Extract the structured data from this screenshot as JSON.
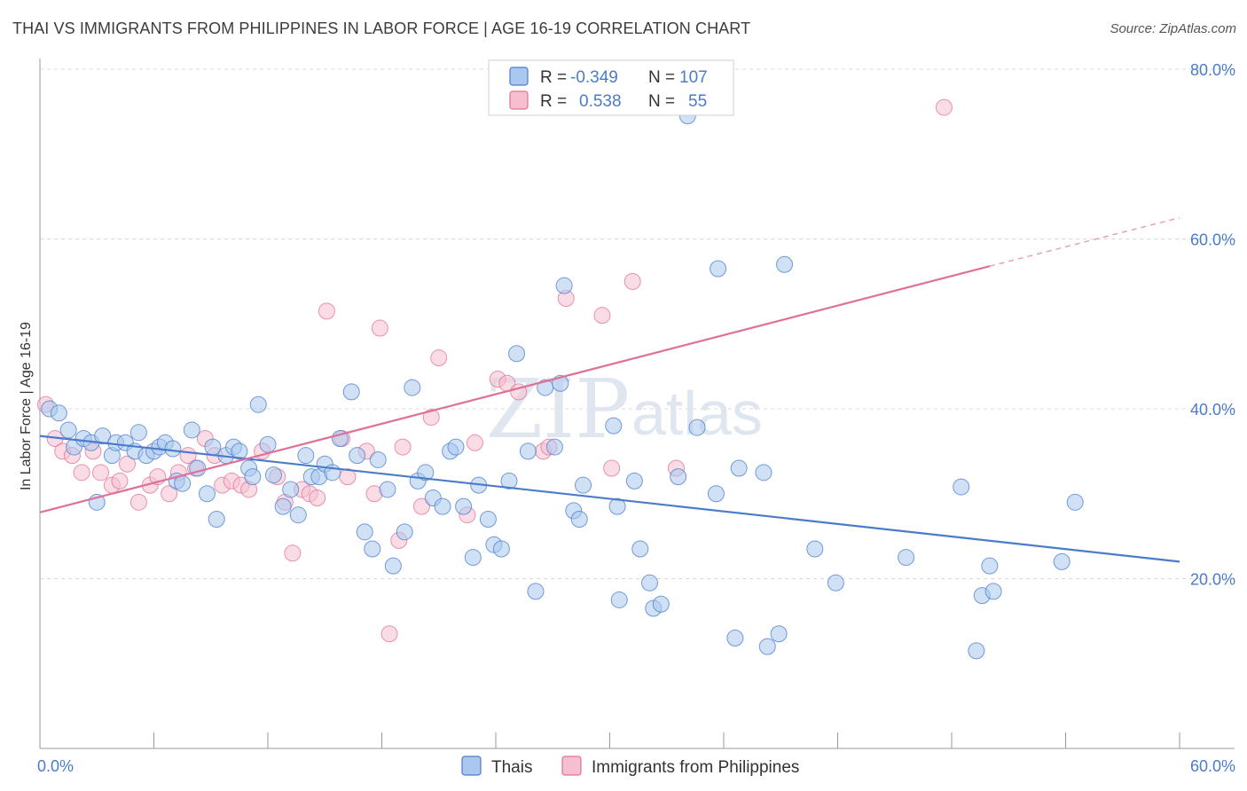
{
  "title": "THAI VS IMMIGRANTS FROM PHILIPPINES IN LABOR FORCE | AGE 16-19 CORRELATION CHART",
  "source": "Source: ZipAtlas.com",
  "watermark": {
    "zip": "ZIP",
    "atlas": "atlas"
  },
  "colors": {
    "blue": "#4a7cc9",
    "blue_fill": "#aac8ef",
    "pink": "#e07099",
    "pink_fill": "#f5bfd0",
    "grid": "#d8d8d8"
  },
  "legend_top": {
    "rows": [
      {
        "r_label": "R =",
        "r_value": "-0.349",
        "n_label": "N =",
        "n_value": "107"
      },
      {
        "r_label": "R =",
        "r_value": "0.538",
        "n_label": "N =",
        "n_value": "55"
      }
    ]
  },
  "chart_data": {
    "type": "scatter",
    "title": "THAI VS IMMIGRANTS FROM PHILIPPINES IN LABOR FORCE | AGE 16-19 CORRELATION CHART",
    "xlabel": "",
    "ylabel": "In Labor Force | Age 16-19",
    "xlim": [
      0,
      60
    ],
    "ylim": [
      0,
      80
    ],
    "x_tick_labels": [
      "0.0%",
      "60.0%"
    ],
    "y_ticks": [
      20,
      40,
      60,
      80
    ],
    "y_tick_labels": [
      "20.0%",
      "40.0%",
      "60.0%",
      "80.0%"
    ],
    "grid": true,
    "legend_position": "bottom",
    "series": [
      {
        "name": "Thais",
        "trend": {
          "x": [
            0,
            60
          ],
          "y": [
            36.8,
            22.0
          ],
          "dash_from": null
        },
        "points": [
          [
            0.5,
            40
          ],
          [
            1,
            39.5
          ],
          [
            1.5,
            37.5
          ],
          [
            1.8,
            35.5
          ],
          [
            2.3,
            36.5
          ],
          [
            2.7,
            36
          ],
          [
            3,
            29
          ],
          [
            3.3,
            36.8
          ],
          [
            3.8,
            34.5
          ],
          [
            4,
            36
          ],
          [
            4.5,
            36
          ],
          [
            5,
            35
          ],
          [
            5.2,
            37.2
          ],
          [
            5.6,
            34.5
          ],
          [
            6,
            35
          ],
          [
            6.3,
            35.5
          ],
          [
            6.6,
            36
          ],
          [
            7,
            35.3
          ],
          [
            7.2,
            31.5
          ],
          [
            7.5,
            31.2
          ],
          [
            8,
            37.5
          ],
          [
            8.3,
            33
          ],
          [
            8.8,
            30
          ],
          [
            9.1,
            35.5
          ],
          [
            9.3,
            27
          ],
          [
            9.8,
            34.5
          ],
          [
            10.2,
            35.5
          ],
          [
            10.5,
            35
          ],
          [
            11,
            33
          ],
          [
            11.2,
            32
          ],
          [
            11.5,
            40.5
          ],
          [
            12,
            35.8
          ],
          [
            12.3,
            32.2
          ],
          [
            12.8,
            28.5
          ],
          [
            13.2,
            30.5
          ],
          [
            13.6,
            27.5
          ],
          [
            14,
            34.5
          ],
          [
            14.3,
            32
          ],
          [
            14.7,
            32
          ],
          [
            15,
            33.5
          ],
          [
            15.4,
            32.5
          ],
          [
            15.8,
            36.5
          ],
          [
            16.4,
            42
          ],
          [
            16.7,
            34.5
          ],
          [
            17.1,
            25.5
          ],
          [
            17.5,
            23.5
          ],
          [
            17.8,
            34
          ],
          [
            18.3,
            30.5
          ],
          [
            18.6,
            21.5
          ],
          [
            19.2,
            25.5
          ],
          [
            19.6,
            42.5
          ],
          [
            19.9,
            31.5
          ],
          [
            20.3,
            32.5
          ],
          [
            20.7,
            29.5
          ],
          [
            21.2,
            28.5
          ],
          [
            21.6,
            35
          ],
          [
            21.9,
            35.5
          ],
          [
            22.3,
            28.5
          ],
          [
            22.8,
            22.5
          ],
          [
            23.1,
            31
          ],
          [
            23.6,
            27
          ],
          [
            23.9,
            24
          ],
          [
            24.3,
            23.5
          ],
          [
            24.7,
            31.5
          ],
          [
            25.1,
            46.5
          ],
          [
            25.7,
            35
          ],
          [
            26.1,
            18.5
          ],
          [
            26.6,
            42.5
          ],
          [
            27.1,
            35.5
          ],
          [
            27.4,
            43
          ],
          [
            27.6,
            54.5
          ],
          [
            28.1,
            28
          ],
          [
            28.4,
            27
          ],
          [
            28.6,
            31
          ],
          [
            30.2,
            38
          ],
          [
            30.4,
            28.5
          ],
          [
            30.5,
            17.5
          ],
          [
            31.3,
            31.5
          ],
          [
            31.6,
            23.5
          ],
          [
            32.1,
            19.5
          ],
          [
            32.3,
            16.5
          ],
          [
            32.7,
            17
          ],
          [
            33.6,
            32
          ],
          [
            34.1,
            74.5
          ],
          [
            34.6,
            37.8
          ],
          [
            35.6,
            30
          ],
          [
            35.7,
            56.5
          ],
          [
            36.6,
            13
          ],
          [
            36.8,
            33
          ],
          [
            38.1,
            32.5
          ],
          [
            38.3,
            12
          ],
          [
            38.9,
            13.5
          ],
          [
            39.2,
            57
          ],
          [
            40.8,
            23.5
          ],
          [
            41.9,
            19.5
          ],
          [
            45.6,
            22.5
          ],
          [
            48.5,
            30.8
          ],
          [
            49.3,
            11.5
          ],
          [
            49.6,
            18
          ],
          [
            50,
            21.5
          ],
          [
            50.2,
            18.5
          ],
          [
            53.8,
            22
          ],
          [
            54.5,
            29
          ]
        ]
      },
      {
        "name": "Immigrants from Philippines",
        "trend": {
          "x": [
            0,
            50,
            60
          ],
          "y": [
            27.8,
            56.8,
            62.5
          ],
          "dash_from": 50
        },
        "points": [
          [
            0.3,
            40.5
          ],
          [
            0.8,
            36.5
          ],
          [
            1.2,
            35
          ],
          [
            1.7,
            34.5
          ],
          [
            2.2,
            32.5
          ],
          [
            2.8,
            35
          ],
          [
            3.2,
            32.5
          ],
          [
            3.8,
            31
          ],
          [
            4.2,
            31.5
          ],
          [
            4.6,
            33.5
          ],
          [
            5.2,
            29
          ],
          [
            5.8,
            31
          ],
          [
            6.2,
            32
          ],
          [
            6.8,
            30
          ],
          [
            7.3,
            32.5
          ],
          [
            7.8,
            34.5
          ],
          [
            8.2,
            33
          ],
          [
            8.7,
            36.5
          ],
          [
            9.2,
            34.5
          ],
          [
            9.6,
            31
          ],
          [
            10.1,
            31.5
          ],
          [
            10.6,
            31
          ],
          [
            11,
            30.5
          ],
          [
            11.7,
            35
          ],
          [
            12.5,
            32
          ],
          [
            12.9,
            29
          ],
          [
            13.3,
            23
          ],
          [
            13.8,
            30.5
          ],
          [
            14.2,
            30
          ],
          [
            14.6,
            29.5
          ],
          [
            15.1,
            51.5
          ],
          [
            15.9,
            36.5
          ],
          [
            16.2,
            32
          ],
          [
            17.2,
            35
          ],
          [
            17.6,
            30
          ],
          [
            17.9,
            49.5
          ],
          [
            18.4,
            13.5
          ],
          [
            18.9,
            24.5
          ],
          [
            19.1,
            35.5
          ],
          [
            20.1,
            28.5
          ],
          [
            20.6,
            39
          ],
          [
            21,
            46
          ],
          [
            22.5,
            27.5
          ],
          [
            22.9,
            36
          ],
          [
            24.1,
            43.5
          ],
          [
            24.6,
            43
          ],
          [
            25.2,
            42
          ],
          [
            26.5,
            35
          ],
          [
            26.8,
            35.5
          ],
          [
            27.7,
            53
          ],
          [
            29.6,
            51
          ],
          [
            30.1,
            33
          ],
          [
            31.2,
            55
          ],
          [
            33.5,
            33
          ],
          [
            47.6,
            75.5
          ]
        ]
      }
    ]
  },
  "legend_bottom": {
    "items": [
      "Thais",
      "Immigrants from Philippines"
    ]
  }
}
